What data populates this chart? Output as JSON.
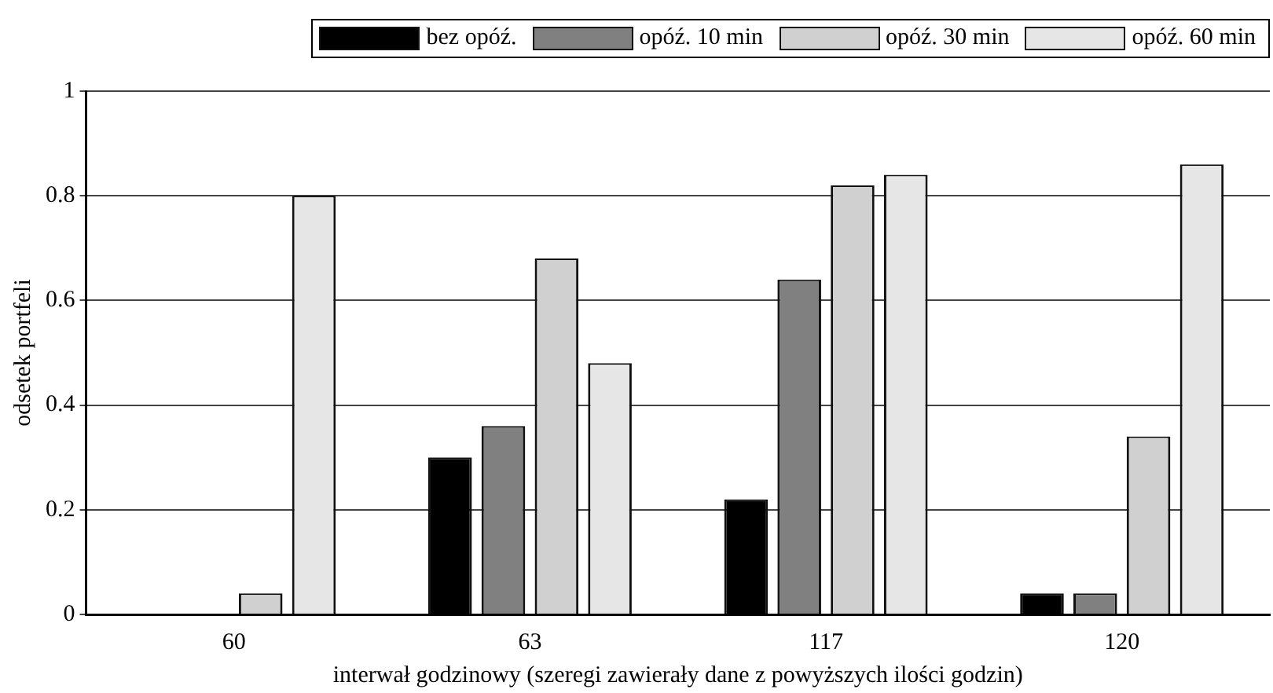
{
  "chart_data": {
    "type": "bar",
    "xlabel": "interwał godzinowy (szeregi zawierały dane z powyższych ilości godzin)",
    "ylabel": "odsetek portfeli",
    "categories": [
      "60",
      "63",
      "117",
      "120"
    ],
    "series": [
      {
        "name": "bez opóź.",
        "color": "#000000",
        "values": [
          0,
          0.3,
          0.22,
          0.04
        ]
      },
      {
        "name": "opóź. 10 min",
        "color": "#808080",
        "values": [
          0,
          0.36,
          0.64,
          0.04
        ]
      },
      {
        "name": "opóź. 30 min",
        "color": "#d0d0d0",
        "values": [
          0.04,
          0.68,
          0.82,
          0.34
        ]
      },
      {
        "name": "opóź. 60 min",
        "color": "#e6e6e6",
        "values": [
          0.8,
          0.48,
          0.84,
          0.86
        ]
      }
    ],
    "ylim": [
      0,
      1
    ],
    "yticks": [
      0,
      0.2,
      0.4,
      0.6,
      0.8,
      1
    ],
    "grid": "y",
    "legend": "top"
  }
}
